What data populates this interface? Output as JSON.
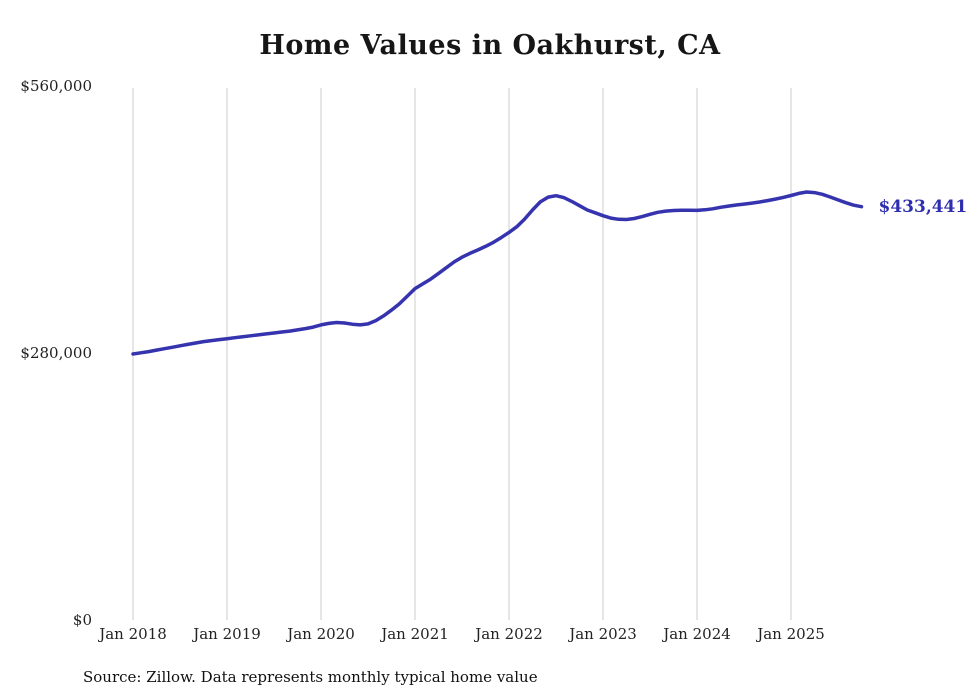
{
  "chart": {
    "title": "Home Values in Oakhurst, CA",
    "source": "Source: Zillow. Data represents monthly typical home value",
    "end_label": "$433,441",
    "colors": {
      "line": "#3534ae",
      "end_label": "#2f2eb0",
      "grid": "#cccccc",
      "title": "#161616",
      "axis_text": "#222222"
    }
  },
  "chart_data": {
    "type": "line",
    "title": "Home Values in Oakhurst, CA",
    "series_name": "Typical home value",
    "x_start": "Jan 2018",
    "x_end": "Oct 2025",
    "x_frequency": "monthly",
    "x_tick_labels": [
      "Jan 2018",
      "Jan 2019",
      "Jan 2020",
      "Jan 2021",
      "Jan 2022",
      "Jan 2023",
      "Jan 2024",
      "Jan 2025"
    ],
    "y_tick_labels": [
      "$0",
      "$280,000",
      "$560,000"
    ],
    "y_tick_values": [
      0,
      280000,
      560000
    ],
    "ylim": [
      0,
      560000
    ],
    "grid": "vertical-only",
    "legend": "none",
    "final_value": 433441,
    "values": [
      279000,
      280200,
      281500,
      283000,
      284500,
      286000,
      287500,
      289000,
      290500,
      292000,
      293000,
      294000,
      295000,
      296000,
      297000,
      298000,
      299000,
      300000,
      301000,
      302000,
      303000,
      304200,
      305600,
      307200,
      309500,
      311000,
      312000,
      311500,
      310200,
      309500,
      310500,
      314000,
      319000,
      325000,
      331500,
      339500,
      347500,
      352500,
      357500,
      363500,
      369500,
      375500,
      380500,
      384500,
      388000,
      391800,
      396000,
      401000,
      406500,
      412500,
      420500,
      430000,
      438500,
      443500,
      445000,
      443000,
      439000,
      434500,
      430000,
      427000,
      424000,
      421500,
      420200,
      420000,
      421000,
      423000,
      425500,
      427500,
      428800,
      429400,
      429700,
      429800,
      429500,
      430200,
      431200,
      432800,
      434000,
      435200,
      436200,
      437200,
      438400,
      439800,
      441400,
      443200,
      445200,
      447400,
      448800,
      448200,
      446400,
      443600,
      440600,
      437600,
      435000,
      433441
    ]
  }
}
